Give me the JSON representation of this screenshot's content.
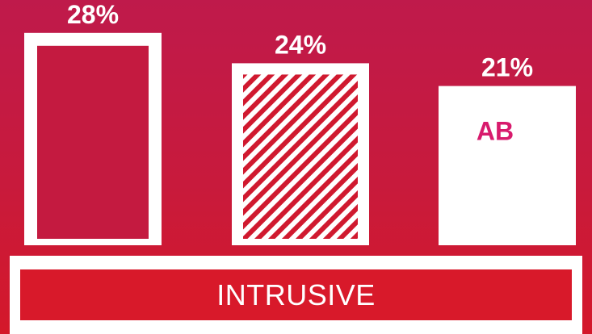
{
  "chart_data": {
    "type": "bar",
    "categories": [
      "",
      "",
      ""
    ],
    "values": [
      28,
      24,
      21
    ],
    "value_labels": [
      "28%",
      "24%",
      "21%"
    ],
    "bar_styles": [
      "outline",
      "hatched",
      "solid"
    ],
    "bar_annotations": [
      "",
      "",
      "AB"
    ],
    "ylim": [
      0,
      30
    ],
    "grid": false,
    "xlabel": "INTRUSIVE"
  },
  "colors": {
    "background_top": "#bf1a4b",
    "background_bottom": "#d4182a",
    "bar": "#ffffff",
    "hatch": "#d0192f",
    "annotation": "#d81b6d"
  }
}
